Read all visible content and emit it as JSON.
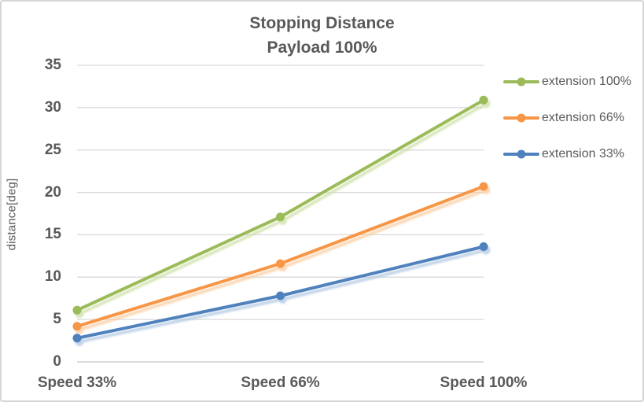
{
  "chart_data": {
    "type": "line",
    "title": "Stopping Distance Payload 100%",
    "title_lines": [
      "Stopping Distance",
      "Payload 100%"
    ],
    "categories": [
      "Speed 33%",
      "Speed 66%",
      "Speed 100%"
    ],
    "series": [
      {
        "name": "extension 100%",
        "color": "#9BBB59",
        "shadow_color": "#CCDFA4",
        "values": [
          6.1,
          17.1,
          30.9
        ]
      },
      {
        "name": "extension 66%",
        "color": "#F79646",
        "shadow_color": "#FBCB9E",
        "values": [
          4.2,
          11.6,
          20.7
        ]
      },
      {
        "name": "extension 33%",
        "color": "#4F81BD",
        "shadow_color": "#AFC7E2",
        "values": [
          2.8,
          7.8,
          13.6
        ]
      }
    ],
    "xlabel": "",
    "ylabel": "distance[deg]",
    "ylim": [
      0,
      35
    ],
    "ytick_step": 5,
    "yticks": [
      0,
      5,
      10,
      15,
      20,
      25,
      30,
      35
    ],
    "grid": true,
    "legend_position": "right",
    "gridline_color": "#D9D9D9",
    "baseline_color": "#C6C6C6",
    "text_color": "#595959"
  }
}
